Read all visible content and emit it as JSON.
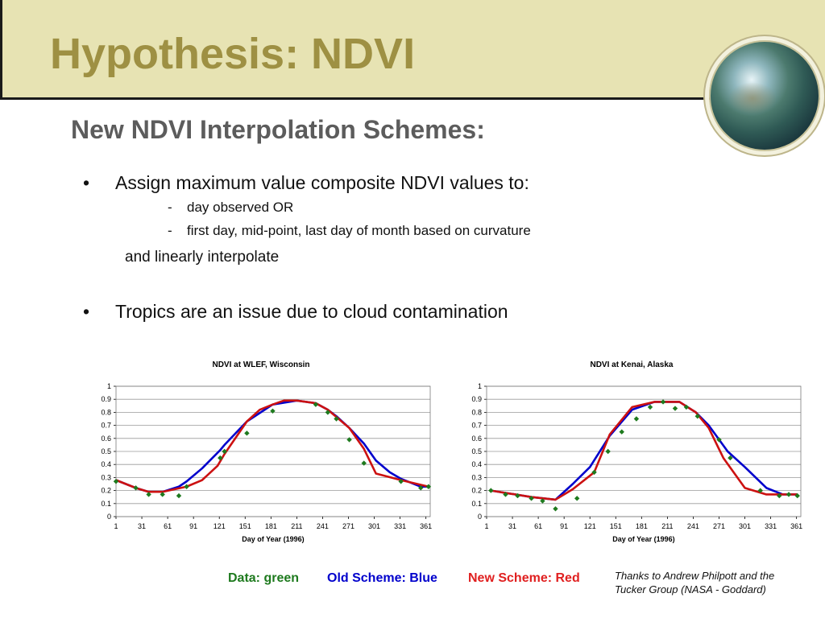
{
  "slide": {
    "title": "Hypothesis:  NDVI",
    "subtitle": "New NDVI Interpolation Schemes:",
    "bullets": {
      "b1": "Assign maximum value composite NDVI values to:",
      "sub1": "day observed OR",
      "sub2": "first day, mid-point, last day of month based on curvature",
      "cont": "and linearly interpolate",
      "b2": "Tropics are an issue due to cloud contamination"
    },
    "bullet_glyph": "•",
    "dash_glyph": "-",
    "legend": {
      "data": "Data:  green",
      "old": "Old Scheme:  Blue",
      "new": "New Scheme:  Red"
    },
    "credit": "Thanks to Andrew Philpott and the Tucker Group (NASA - Goddard)",
    "colors": {
      "band": "#e7e3b3",
      "title": "#9e9043",
      "subtitle": "#5c5c5c",
      "data": "#1e7a1e",
      "old_scheme": "#0000cc",
      "new_scheme": "#cc1111"
    }
  },
  "chart_data": [
    {
      "type": "line",
      "title": "NDVI at WLEF, Wisconsin",
      "xlabel": "Day of Year (1996)",
      "ylabel": "",
      "xlim": [
        1,
        366
      ],
      "ylim": [
        0,
        1
      ],
      "xticks": [
        1,
        31,
        61,
        91,
        121,
        151,
        181,
        211,
        241,
        271,
        301,
        331,
        361
      ],
      "yticks": [
        0,
        0.1,
        0.2,
        0.3,
        0.4,
        0.5,
        0.6,
        0.7,
        0.8,
        0.9,
        1
      ],
      "grid": true,
      "series": [
        {
          "name": "Data",
          "color": "#1e7a1e",
          "marker": "diamond",
          "x": [
            1,
            24,
            39,
            55,
            74,
            83,
            122,
            127,
            153,
            183,
            233,
            247,
            257,
            272,
            289,
            332,
            355,
            364
          ],
          "y": [
            0.27,
            0.22,
            0.17,
            0.17,
            0.16,
            0.23,
            0.45,
            0.5,
            0.64,
            0.81,
            0.86,
            0.8,
            0.75,
            0.59,
            0.41,
            0.27,
            0.22,
            0.23
          ]
        },
        {
          "name": "Old Scheme",
          "color": "#0000cc",
          "x": [
            1,
            24,
            39,
            55,
            74,
            83,
            101,
            122,
            127,
            153,
            183,
            211,
            233,
            247,
            257,
            272,
            289,
            303,
            319,
            332,
            355,
            364
          ],
          "y": [
            0.28,
            0.22,
            0.19,
            0.19,
            0.23,
            0.27,
            0.37,
            0.51,
            0.55,
            0.73,
            0.86,
            0.89,
            0.87,
            0.82,
            0.77,
            0.68,
            0.56,
            0.43,
            0.34,
            0.29,
            0.23,
            0.23
          ]
        },
        {
          "name": "New Scheme",
          "color": "#cc1111",
          "x": [
            1,
            24,
            39,
            55,
            83,
            101,
            119,
            127,
            153,
            168,
            183,
            196,
            211,
            233,
            247,
            272,
            289,
            303,
            332,
            364
          ],
          "y": [
            0.28,
            0.22,
            0.19,
            0.19,
            0.23,
            0.28,
            0.39,
            0.48,
            0.73,
            0.82,
            0.86,
            0.89,
            0.89,
            0.87,
            0.82,
            0.68,
            0.52,
            0.33,
            0.28,
            0.23
          ]
        }
      ]
    },
    {
      "type": "line",
      "title": "NDVI at Kenai, Alaska",
      "xlabel": "Day of Year (1996)",
      "ylabel": "",
      "xlim": [
        1,
        366
      ],
      "ylim": [
        0,
        1
      ],
      "xticks": [
        1,
        31,
        61,
        91,
        121,
        151,
        181,
        211,
        241,
        271,
        301,
        331,
        361
      ],
      "yticks": [
        0,
        0.1,
        0.2,
        0.3,
        0.4,
        0.5,
        0.6,
        0.7,
        0.8,
        0.9,
        1
      ],
      "grid": true,
      "series": [
        {
          "name": "Data",
          "color": "#1e7a1e",
          "marker": "diamond",
          "x": [
            6,
            23,
            37,
            53,
            66,
            81,
            106,
            126,
            142,
            158,
            175,
            191,
            206,
            220,
            233,
            246,
            271,
            284,
            319,
            341,
            352,
            362
          ],
          "y": [
            0.2,
            0.17,
            0.16,
            0.14,
            0.12,
            0.06,
            0.14,
            0.34,
            0.5,
            0.65,
            0.75,
            0.84,
            0.88,
            0.83,
            0.84,
            0.77,
            0.59,
            0.45,
            0.2,
            0.16,
            0.17,
            0.16
          ]
        },
        {
          "name": "Old Scheme",
          "color": "#0000cc",
          "x": [
            6,
            53,
            81,
            101,
            121,
            144,
            170,
            196,
            225,
            244,
            259,
            281,
            301,
            326,
            345,
            362
          ],
          "y": [
            0.2,
            0.15,
            0.13,
            0.25,
            0.38,
            0.62,
            0.82,
            0.88,
            0.88,
            0.8,
            0.7,
            0.5,
            0.38,
            0.22,
            0.17,
            0.17
          ]
        },
        {
          "name": "New Scheme",
          "color": "#cc1111",
          "x": [
            6,
            53,
            81,
            101,
            126,
            144,
            170,
            196,
            225,
            244,
            259,
            276,
            301,
            326,
            362
          ],
          "y": [
            0.2,
            0.15,
            0.13,
            0.21,
            0.34,
            0.63,
            0.84,
            0.88,
            0.88,
            0.8,
            0.68,
            0.45,
            0.22,
            0.17,
            0.17
          ]
        }
      ]
    }
  ]
}
